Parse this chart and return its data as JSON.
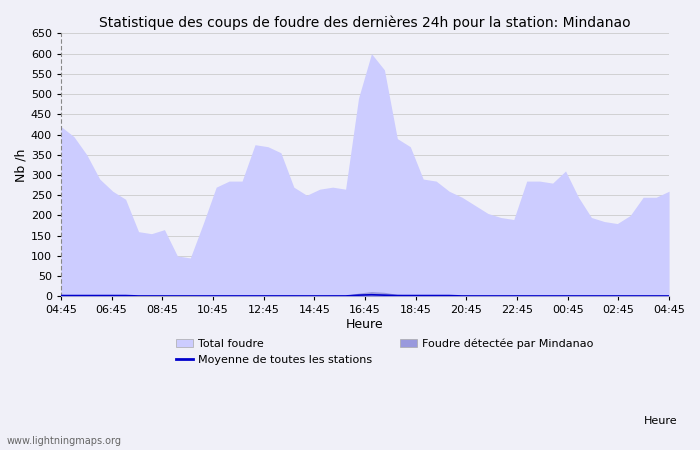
{
  "title": "Statistique des coups de foudre des dernières 24h pour la station: Mindanao",
  "xlabel": "Heure",
  "ylabel": "Nb /h",
  "xtick_labels": [
    "04:45",
    "06:45",
    "08:45",
    "10:45",
    "12:45",
    "14:45",
    "16:45",
    "18:45",
    "20:45",
    "22:45",
    "00:45",
    "02:45",
    "04:45"
  ],
  "ylim": [
    0,
    650
  ],
  "yticks": [
    0,
    50,
    100,
    150,
    200,
    250,
    300,
    350,
    400,
    450,
    500,
    550,
    600,
    650
  ],
  "background_color": "#f0f0f8",
  "plot_bg_color": "#f0f0f8",
  "grid_color": "#cccccc",
  "fill_color_total": "#ccccff",
  "fill_color_station": "#9999dd",
  "line_color_moyenne": "#0000cc",
  "watermark": "www.lightningmaps.org",
  "total_foudre": [
    420,
    395,
    350,
    290,
    260,
    240,
    160,
    155,
    165,
    100,
    95,
    180,
    270,
    285,
    285,
    375,
    370,
    355,
    270,
    250,
    265,
    270,
    265,
    490,
    600,
    560,
    390,
    370,
    290,
    285,
    260,
    245,
    225,
    205,
    195,
    190,
    285,
    285,
    280,
    310,
    245,
    195,
    185,
    180,
    200,
    245,
    245,
    260
  ],
  "foudre_station": [
    5,
    4,
    3,
    2,
    2,
    2,
    1,
    1,
    1,
    1,
    1,
    2,
    3,
    3,
    3,
    3,
    3,
    3,
    3,
    2,
    2,
    3,
    3,
    8,
    12,
    10,
    5,
    4,
    3,
    2,
    2,
    2,
    2,
    2,
    2,
    2,
    2,
    2,
    2,
    2,
    2,
    2,
    2,
    2,
    2,
    2,
    2,
    2
  ],
  "moyenne": [
    2,
    2,
    2,
    2,
    2,
    2,
    1,
    1,
    1,
    1,
    1,
    1,
    1,
    1,
    1,
    1,
    1,
    1,
    1,
    1,
    1,
    1,
    1,
    3,
    4,
    3,
    2,
    2,
    2,
    2,
    2,
    1,
    1,
    1,
    1,
    1,
    1,
    1,
    1,
    1,
    1,
    1,
    1,
    1,
    1,
    1,
    1,
    1
  ],
  "n_points": 48
}
